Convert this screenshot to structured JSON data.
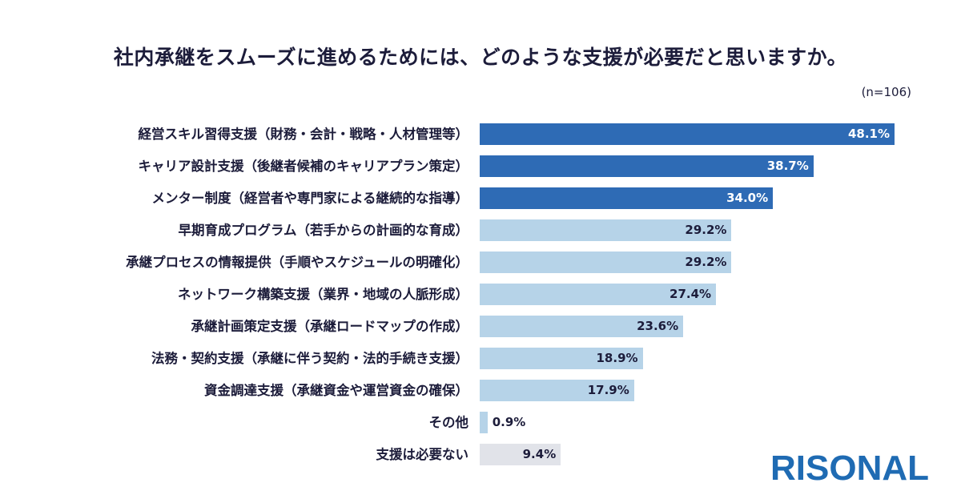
{
  "chart_data": {
    "type": "bar",
    "orientation": "horizontal",
    "title": "社内承継をスムーズに進めるためには、どのような支援が必要だと思いますか。",
    "note": "(n=106)",
    "categories": [
      "経営スキル習得支援（財務・会計・戦略・人材管理等）",
      "キャリア設計支援（後継者候補のキャリアプラン策定）",
      "メンター制度（経営者や専門家による継続的な指導）",
      "早期育成プログラム（若手からの計画的な育成）",
      "承継プロセスの情報提供（手順やスケジュールの明確化）",
      "ネットワーク構築支援（業界・地域の人脈形成）",
      "承継計画策定支援（承継ロードマップの作成）",
      "法務・契約支援（承継に伴う契約・法的手続き支援）",
      "資金調達支援（承継資金や運営資金の確保）",
      "その他",
      "支援は必要ない"
    ],
    "values": [
      48.1,
      38.7,
      34.0,
      29.2,
      29.2,
      27.4,
      23.6,
      18.9,
      17.9,
      0.9,
      9.4
    ],
    "value_labels": [
      "48.1%",
      "38.7%",
      "34.0%",
      "29.2%",
      "29.2%",
      "27.4%",
      "23.6%",
      "18.9%",
      "17.9%",
      "0.9%",
      "9.4%"
    ],
    "unit": "%",
    "colors": {
      "top": "#2e6bb5",
      "other": "#b6d3e8",
      "none": "#e1e3e9",
      "label_light": "#ffffff",
      "label_dark": "#1c1c3a"
    },
    "grid": false
  },
  "logo": "RISONAL"
}
